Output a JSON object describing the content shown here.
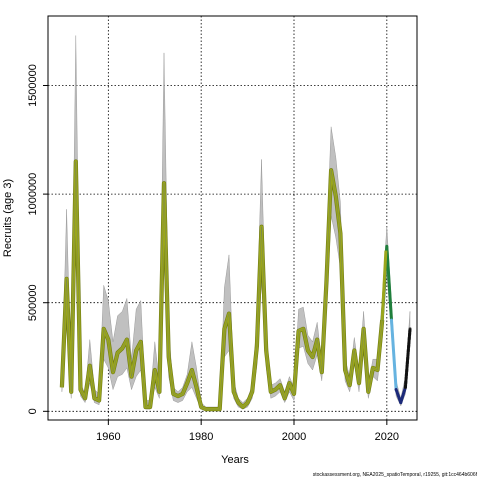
{
  "chart_data": {
    "type": "line",
    "xlabel": "Years",
    "ylabel": "Recruits (age 3)",
    "xlim": [
      1947,
      2026.5
    ],
    "ylim": [
      -40000,
      1820000
    ],
    "x_ticks": [
      1960,
      1980,
      2000,
      2020
    ],
    "y_ticks": [
      0,
      500000,
      1000000,
      1500000
    ],
    "y_tick_labels": [
      "0",
      "500000",
      "1000000",
      "1500000"
    ],
    "grid": true,
    "grid_style": "dotted",
    "footer": "stockassessment.org, NEA2025_spatioTemporal, r19255, git:1cc464b606f",
    "colors": {
      "band": "#c0c0c0",
      "band_edge": "#8a8a8a",
      "median": "#9aa61c",
      "median_edge": "#6f7a16",
      "recent": "#1f7f3c",
      "teal": "#2fa8a0",
      "lightblue": "#66b3e0",
      "navy": "#1c2a7a",
      "projection": "#111111"
    },
    "series": [
      {
        "x": [
          1950,
          1951,
          1952,
          1953,
          1954,
          1955,
          1956,
          1957,
          1958,
          1959,
          1960,
          1961,
          1962,
          1963,
          1964,
          1965,
          1966,
          1967,
          1968,
          1969,
          1970,
          1971,
          1972,
          1973,
          1974,
          1975,
          1976,
          1977,
          1978,
          1979,
          1980,
          1981,
          1982,
          1983,
          1984,
          1985,
          1986,
          1987,
          1988,
          1989,
          1990,
          1991,
          1992,
          1993,
          1994,
          1995,
          1996,
          1997,
          1998,
          1999,
          2000,
          2001,
          2002,
          2003,
          2004,
          2005,
          2006,
          2007,
          2008,
          2009,
          2010,
          2011,
          2012,
          2013,
          2014,
          2015,
          2016,
          2017,
          2018,
          2019
        ],
        "values": [
          110000,
          610000,
          90000,
          1150000,
          100000,
          60000,
          210000,
          60000,
          50000,
          380000,
          330000,
          180000,
          270000,
          290000,
          330000,
          160000,
          280000,
          320000,
          20000,
          20000,
          190000,
          90000,
          1050000,
          250000,
          80000,
          70000,
          80000,
          130000,
          190000,
          110000,
          20000,
          10000,
          10000,
          10000,
          10000,
          380000,
          450000,
          90000,
          40000,
          20000,
          40000,
          90000,
          300000,
          850000,
          280000,
          90000,
          100000,
          120000,
          60000,
          130000,
          80000,
          370000,
          380000,
          280000,
          250000,
          330000,
          180000,
          600000,
          1110000,
          990000,
          820000,
          190000,
          120000,
          280000,
          130000,
          380000,
          90000,
          200000,
          190000,
          420000
        ],
        "upper": [
          130000,
          930000,
          120000,
          1730000,
          130000,
          80000,
          330000,
          100000,
          80000,
          580000,
          510000,
          320000,
          440000,
          460000,
          520000,
          240000,
          470000,
          510000,
          50000,
          50000,
          320000,
          130000,
          1650000,
          370000,
          110000,
          90000,
          110000,
          170000,
          320000,
          200000,
          40000,
          20000,
          20000,
          20000,
          20000,
          570000,
          720000,
          140000,
          60000,
          40000,
          60000,
          120000,
          420000,
          1160000,
          380000,
          120000,
          130000,
          150000,
          90000,
          160000,
          110000,
          470000,
          480000,
          350000,
          320000,
          410000,
          220000,
          750000,
          1310000,
          1170000,
          960000,
          240000,
          160000,
          340000,
          180000,
          460000,
          120000,
          240000,
          240000,
          520000
        ],
        "lower": [
          90000,
          400000,
          60000,
          760000,
          70000,
          40000,
          130000,
          40000,
          30000,
          240000,
          200000,
          100000,
          160000,
          170000,
          200000,
          100000,
          160000,
          190000,
          10000,
          10000,
          110000,
          60000,
          680000,
          160000,
          50000,
          40000,
          50000,
          90000,
          110000,
          60000,
          10000,
          5000,
          5000,
          5000,
          5000,
          250000,
          280000,
          60000,
          20000,
          10000,
          20000,
          60000,
          210000,
          600000,
          200000,
          60000,
          70000,
          90000,
          40000,
          90000,
          50000,
          290000,
          300000,
          220000,
          190000,
          260000,
          140000,
          470000,
          900000,
          800000,
          660000,
          140000,
          90000,
          220000,
          90000,
          300000,
          60000,
          160000,
          140000,
          330000
        ]
      },
      {
        "x": [
          2019,
          2020,
          2021
        ],
        "values": [
          420000,
          760000,
          420000
        ],
        "upper": [
          520000,
          850000,
          500000
        ],
        "lower": [
          330000,
          640000,
          350000
        ]
      },
      {
        "x": [
          2021,
          2022,
          2023,
          2024,
          2025
        ],
        "values": [
          420000,
          100000,
          40000,
          110000,
          380000
        ],
        "upper": [
          500000,
          140000,
          60000,
          160000,
          460000
        ],
        "lower": [
          350000,
          70000,
          25000,
          80000,
          310000
        ]
      }
    ]
  }
}
